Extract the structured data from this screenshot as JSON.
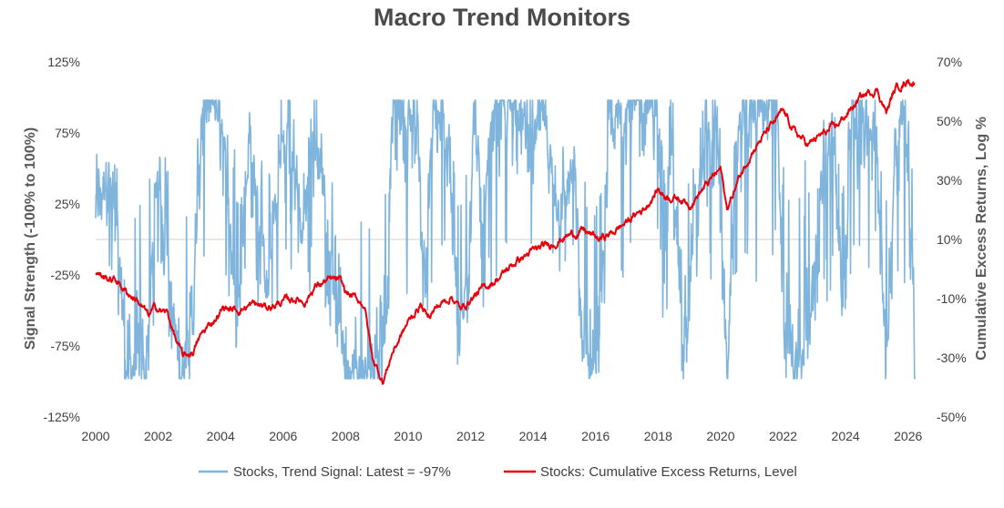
{
  "chart_data": {
    "type": "line",
    "title": "Macro Trend Monitors",
    "ylabel_left": "Signal Strength (-100% to 100%)",
    "ylabel_right": "Cumulative Excess Returns, Log %",
    "x_range": [
      2000,
      2026.3
    ],
    "x_ticks": [
      2000,
      2002,
      2004,
      2006,
      2008,
      2010,
      2012,
      2014,
      2016,
      2018,
      2020,
      2022,
      2024,
      2026
    ],
    "x_tick_labels": [
      "2000",
      "2002",
      "2004",
      "2006",
      "2008",
      "2010",
      "2012",
      "2014",
      "2016",
      "2018",
      "2020",
      "2022",
      "2024",
      "2026"
    ],
    "left_axis": {
      "range": [
        -125,
        125
      ],
      "ticks": [
        125,
        75,
        25,
        -25,
        -75,
        -125
      ],
      "tick_labels": [
        "125%",
        "75%",
        "25%",
        "-25%",
        "-75%",
        "-125%"
      ]
    },
    "right_axis": {
      "range": [
        -50,
        70
      ],
      "ticks": [
        70,
        50,
        30,
        10,
        -10,
        -30,
        -50
      ],
      "tick_labels": [
        "70%",
        "50%",
        "30%",
        "10%",
        "-10%",
        "-30%",
        "-50%"
      ]
    },
    "series": [
      {
        "name": "Stocks, Trend Signal: Latest = -97%",
        "axis": "left",
        "color": "#7fb4dc",
        "regime_keyframes": [
          [
            2000.0,
            20
          ],
          [
            2000.4,
            50
          ],
          [
            2000.8,
            -30
          ],
          [
            2001.0,
            -90
          ],
          [
            2001.6,
            -90
          ],
          [
            2002.0,
            60
          ],
          [
            2002.3,
            -20
          ],
          [
            2002.7,
            -95
          ],
          [
            2003.1,
            -60
          ],
          [
            2003.4,
            95
          ],
          [
            2004.0,
            95
          ],
          [
            2004.3,
            10
          ],
          [
            2004.5,
            -80
          ],
          [
            2004.9,
            70
          ],
          [
            2005.2,
            20
          ],
          [
            2005.5,
            -40
          ],
          [
            2005.9,
            60
          ],
          [
            2006.2,
            85
          ],
          [
            2006.6,
            0
          ],
          [
            2006.9,
            80
          ],
          [
            2007.3,
            40
          ],
          [
            2007.7,
            -40
          ],
          [
            2008.0,
            -90
          ],
          [
            2008.7,
            -95
          ],
          [
            2009.3,
            -60
          ],
          [
            2009.5,
            95
          ],
          [
            2010.3,
            80
          ],
          [
            2010.5,
            -30
          ],
          [
            2010.8,
            90
          ],
          [
            2011.3,
            70
          ],
          [
            2011.6,
            -90
          ],
          [
            2011.9,
            -20
          ],
          [
            2012.1,
            90
          ],
          [
            2012.4,
            0
          ],
          [
            2012.7,
            90
          ],
          [
            2013.4,
            95
          ],
          [
            2014.0,
            70
          ],
          [
            2014.3,
            90
          ],
          [
            2014.8,
            20
          ],
          [
            2015.3,
            50
          ],
          [
            2015.6,
            -85
          ],
          [
            2016.1,
            -90
          ],
          [
            2016.4,
            70
          ],
          [
            2017.0,
            95
          ],
          [
            2018.0,
            95
          ],
          [
            2018.1,
            -10
          ],
          [
            2018.4,
            80
          ],
          [
            2018.8,
            -90
          ],
          [
            2019.2,
            30
          ],
          [
            2019.5,
            60
          ],
          [
            2019.9,
            80
          ],
          [
            2020.2,
            -95
          ],
          [
            2020.5,
            70
          ],
          [
            2021.0,
            95
          ],
          [
            2021.8,
            95
          ],
          [
            2022.0,
            -70
          ],
          [
            2022.6,
            -90
          ],
          [
            2023.0,
            -20
          ],
          [
            2023.3,
            60
          ],
          [
            2023.6,
            80
          ],
          [
            2023.9,
            -60
          ],
          [
            2024.2,
            95
          ],
          [
            2024.6,
            90
          ],
          [
            2025.0,
            70
          ],
          [
            2025.3,
            -90
          ],
          [
            2025.6,
            80
          ],
          [
            2025.9,
            85
          ],
          [
            2026.1,
            0
          ],
          [
            2026.22,
            -97
          ]
        ]
      },
      {
        "name": "Stocks:  Cumulative Excess Returns, Level",
        "axis": "right",
        "color": "#e8000b",
        "keyframes": [
          [
            2000.0,
            -1
          ],
          [
            2000.3,
            -3
          ],
          [
            2000.7,
            -4
          ],
          [
            2001.0,
            -8
          ],
          [
            2001.3,
            -10
          ],
          [
            2001.7,
            -16
          ],
          [
            2001.9,
            -13
          ],
          [
            2002.3,
            -15
          ],
          [
            2002.6,
            -25
          ],
          [
            2002.8,
            -30
          ],
          [
            2003.1,
            -28
          ],
          [
            2003.4,
            -22
          ],
          [
            2003.8,
            -17
          ],
          [
            2004.1,
            -13
          ],
          [
            2004.5,
            -14
          ],
          [
            2005.0,
            -12
          ],
          [
            2005.5,
            -13
          ],
          [
            2006.0,
            -11
          ],
          [
            2006.4,
            -10
          ],
          [
            2006.7,
            -11
          ],
          [
            2007.0,
            -6
          ],
          [
            2007.4,
            -4
          ],
          [
            2007.8,
            -4
          ],
          [
            2008.0,
            -8
          ],
          [
            2008.6,
            -12
          ],
          [
            2008.85,
            -30
          ],
          [
            2009.2,
            -38
          ],
          [
            2009.5,
            -28
          ],
          [
            2010.0,
            -18
          ],
          [
            2010.4,
            -12
          ],
          [
            2010.6,
            -16
          ],
          [
            2010.9,
            -13
          ],
          [
            2011.4,
            -9
          ],
          [
            2011.7,
            -14
          ],
          [
            2012.0,
            -10
          ],
          [
            2012.5,
            -6
          ],
          [
            2013.0,
            -2
          ],
          [
            2013.5,
            3
          ],
          [
            2014.0,
            6
          ],
          [
            2014.5,
            8
          ],
          [
            2015.0,
            11
          ],
          [
            2015.6,
            13
          ],
          [
            2016.1,
            10
          ],
          [
            2016.5,
            12
          ],
          [
            2017.0,
            16
          ],
          [
            2017.6,
            21
          ],
          [
            2018.0,
            27
          ],
          [
            2018.2,
            25
          ],
          [
            2018.7,
            24
          ],
          [
            2019.0,
            22
          ],
          [
            2019.6,
            29
          ],
          [
            2020.0,
            34
          ],
          [
            2020.2,
            20
          ],
          [
            2020.6,
            31
          ],
          [
            2021.0,
            40
          ],
          [
            2021.6,
            48
          ],
          [
            2022.0,
            53
          ],
          [
            2022.4,
            46
          ],
          [
            2022.8,
            42
          ],
          [
            2023.2,
            45
          ],
          [
            2023.7,
            48
          ],
          [
            2024.0,
            52
          ],
          [
            2024.5,
            58
          ],
          [
            2025.0,
            61
          ],
          [
            2025.3,
            53
          ],
          [
            2025.6,
            61
          ],
          [
            2026.0,
            64
          ],
          [
            2026.2,
            63
          ]
        ]
      }
    ],
    "legend": [
      {
        "label": "Stocks, Trend Signal: Latest = -97%",
        "color": "#7fb4dc"
      },
      {
        "label": "Stocks:  Cumulative Excess Returns, Level",
        "color": "#e8000b"
      }
    ],
    "legend_position": "bottom",
    "zero_line_left_axis": 0
  }
}
